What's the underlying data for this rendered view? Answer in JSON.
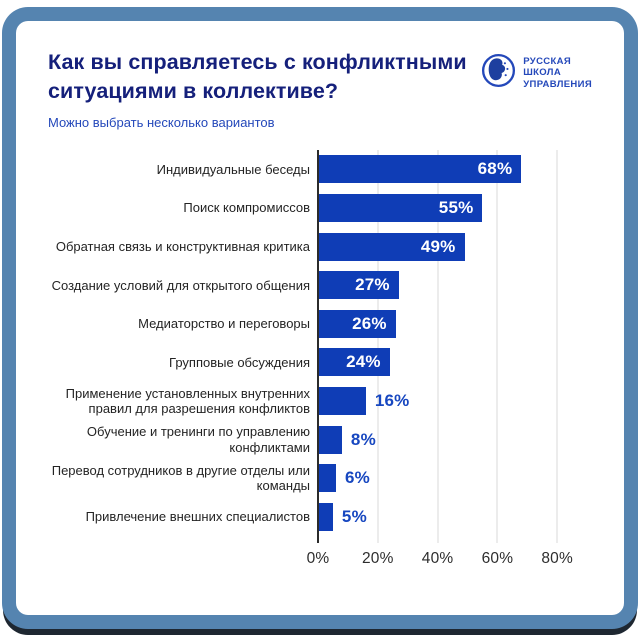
{
  "theme": {
    "frame": "#5584b0",
    "card_bg": "#ffffff",
    "title": "#15207b",
    "subtitle": "#2448ba",
    "bar": "#0f3db6",
    "value_inside": "#ffffff",
    "value_outside": "#1747c0",
    "label": "#242424",
    "tick": "#2d2d2d",
    "gridline": "#d9d9d9",
    "axis": "#2b2b2b"
  },
  "header": {
    "title": "Как вы справляетесь с конфликтными ситуациями в коллективе?",
    "subtitle": "Можно выбрать несколько вариантов",
    "logo_lines": [
      "РУССКАЯ",
      "ШКОЛА",
      "УПРАВЛЕНИЯ"
    ]
  },
  "chart_data": {
    "type": "bar",
    "orientation": "horizontal",
    "title": "Как вы справляетесь с конфликтными ситуациями в коллективе?",
    "subtitle": "Можно выбрать несколько вариантов",
    "categories": [
      "Индивидуальные беседы",
      "Поиск компромиссов",
      "Обратная связь и конструктивная критика",
      "Создание условий для открытого общения",
      "Медиаторство и переговоры",
      "Групповые обсуждения",
      "Применение установленных внутренних правил для разрешения конфликтов",
      "Обучение и тренинги по управлению конфликтами",
      "Перевод сотрудников в другие отделы или команды",
      "Привлечение внешних специалистов"
    ],
    "values": [
      68,
      55,
      49,
      27,
      26,
      24,
      16,
      8,
      6,
      5
    ],
    "value_suffix": "%",
    "x_tick_labels": [
      "0%",
      "20%",
      "40%",
      "60%",
      "80%"
    ],
    "x_tick_values": [
      0,
      20,
      40,
      60,
      80
    ],
    "xlim": [
      0,
      97
    ],
    "grid": "vertical",
    "inside_value_min": 20,
    "legend": "none"
  }
}
